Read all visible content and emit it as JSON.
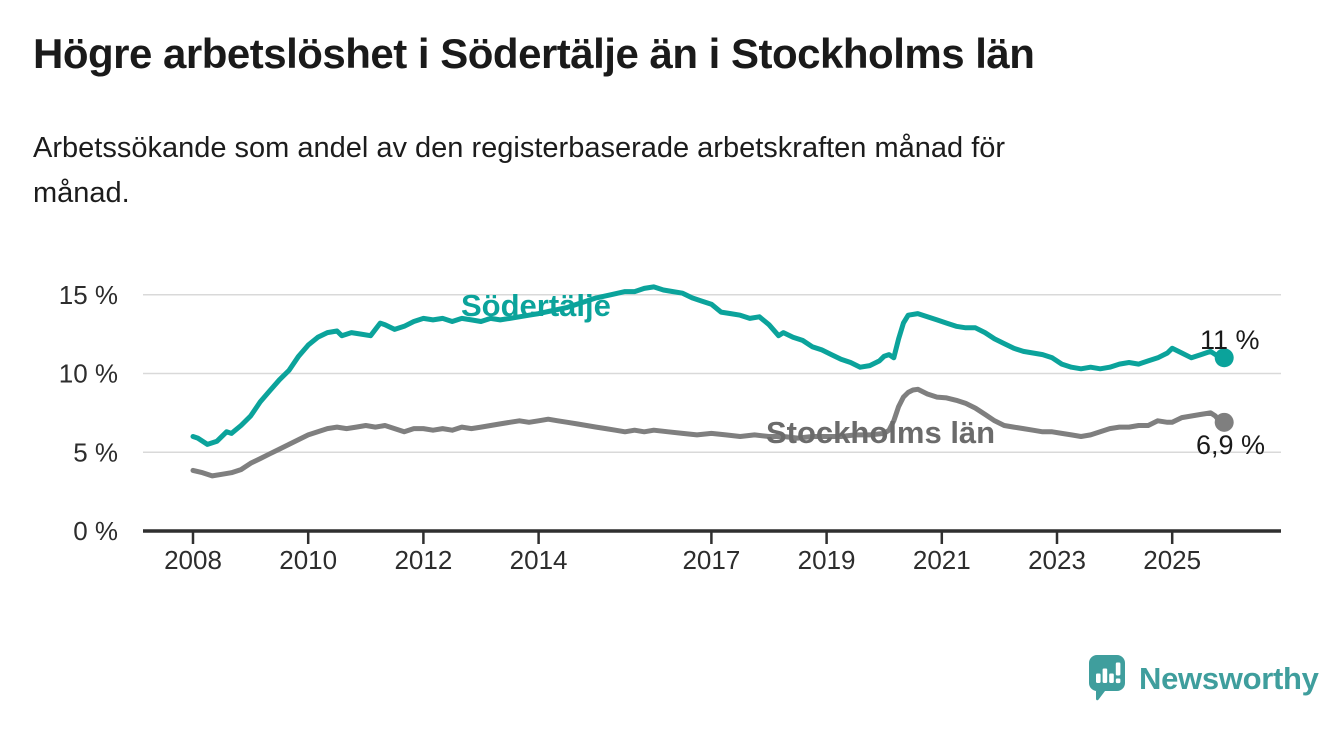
{
  "title": "Högre arbetslöshet i Södertälje än i Stockholms län",
  "subtitle": "Arbetssökande som andel av den registerbaserade arbetskraften månad för månad.",
  "branding": {
    "name": "Newsworthy"
  },
  "colors": {
    "background": "#ffffff",
    "title_text": "#1a1a1a",
    "axis_text": "#2d2d2d",
    "gridline": "#d9d9d9",
    "axis_line": "#2f2f2f",
    "sodertalje_teal": "#0ba39b",
    "stockholm_gray": "#7f7f7f",
    "stockholm_label_gray": "#6b6b6b",
    "logo_teal": "#3f9e9d"
  },
  "chart_data": {
    "type": "line",
    "unit": "%",
    "grid": "horizontal",
    "legend_position": "inline-labels",
    "ylim": [
      0,
      16.5
    ],
    "x_range": [
      "2008-01",
      "2025-11"
    ],
    "y_axis": {
      "ticks": [
        {
          "value": 0,
          "label": "0 %"
        },
        {
          "value": 5,
          "label": "5 %"
        },
        {
          "value": 10,
          "label": "10 %"
        },
        {
          "value": 15,
          "label": "15 %"
        }
      ]
    },
    "x_axis": {
      "ticks": [
        {
          "value": 2008,
          "label": "2008"
        },
        {
          "value": 2010,
          "label": "2010"
        },
        {
          "value": 2012,
          "label": "2012"
        },
        {
          "value": 2014,
          "label": "2014"
        },
        {
          "value": 2017,
          "label": "2017"
        },
        {
          "value": 2019,
          "label": "2019"
        },
        {
          "value": 2021,
          "label": "2021"
        },
        {
          "value": 2023,
          "label": "2023"
        },
        {
          "value": 2025,
          "label": "2025"
        }
      ]
    },
    "series": [
      {
        "name": "Södertälje",
        "color": "#0ba39b",
        "label_color": "#0ba39b",
        "end_label": "11 %",
        "end_value": 11.0,
        "points": [
          [
            "2008-01",
            6.0
          ],
          [
            "2008-02",
            5.9
          ],
          [
            "2008-04",
            5.5
          ],
          [
            "2008-06",
            5.7
          ],
          [
            "2008-08",
            6.3
          ],
          [
            "2008-09",
            6.2
          ],
          [
            "2008-11",
            6.7
          ],
          [
            "2009-01",
            7.3
          ],
          [
            "2009-03",
            8.2
          ],
          [
            "2009-05",
            8.9
          ],
          [
            "2009-07",
            9.6
          ],
          [
            "2009-09",
            10.2
          ],
          [
            "2009-11",
            11.1
          ],
          [
            "2010-01",
            11.8
          ],
          [
            "2010-03",
            12.3
          ],
          [
            "2010-05",
            12.6
          ],
          [
            "2010-07",
            12.7
          ],
          [
            "2010-08",
            12.4
          ],
          [
            "2010-10",
            12.6
          ],
          [
            "2010-12",
            12.5
          ],
          [
            "2011-02",
            12.4
          ],
          [
            "2011-04",
            13.2
          ],
          [
            "2011-05",
            13.1
          ],
          [
            "2011-07",
            12.8
          ],
          [
            "2011-09",
            13.0
          ],
          [
            "2011-11",
            13.3
          ],
          [
            "2012-01",
            13.5
          ],
          [
            "2012-03",
            13.4
          ],
          [
            "2012-05",
            13.5
          ],
          [
            "2012-07",
            13.3
          ],
          [
            "2012-09",
            13.5
          ],
          [
            "2012-11",
            13.4
          ],
          [
            "2013-01",
            13.3
          ],
          [
            "2013-03",
            13.5
          ],
          [
            "2013-05",
            13.4
          ],
          [
            "2013-07",
            13.5
          ],
          [
            "2013-09",
            13.6
          ],
          [
            "2013-11",
            13.7
          ],
          [
            "2014-01",
            13.8
          ],
          [
            "2014-04",
            14.0
          ],
          [
            "2014-07",
            14.2
          ],
          [
            "2014-10",
            14.5
          ],
          [
            "2015-01",
            14.8
          ],
          [
            "2015-04",
            15.0
          ],
          [
            "2015-07",
            15.2
          ],
          [
            "2015-09",
            15.2
          ],
          [
            "2015-11",
            15.4
          ],
          [
            "2016-01",
            15.5
          ],
          [
            "2016-03",
            15.3
          ],
          [
            "2016-05",
            15.2
          ],
          [
            "2016-07",
            15.1
          ],
          [
            "2016-09",
            14.8
          ],
          [
            "2016-11",
            14.6
          ],
          [
            "2017-01",
            14.4
          ],
          [
            "2017-03",
            13.9
          ],
          [
            "2017-05",
            13.8
          ],
          [
            "2017-07",
            13.7
          ],
          [
            "2017-09",
            13.5
          ],
          [
            "2017-11",
            13.6
          ],
          [
            "2018-01",
            13.1
          ],
          [
            "2018-03",
            12.4
          ],
          [
            "2018-04",
            12.6
          ],
          [
            "2018-06",
            12.3
          ],
          [
            "2018-08",
            12.1
          ],
          [
            "2018-10",
            11.7
          ],
          [
            "2018-12",
            11.5
          ],
          [
            "2019-02",
            11.2
          ],
          [
            "2019-04",
            10.9
          ],
          [
            "2019-06",
            10.7
          ],
          [
            "2019-08",
            10.4
          ],
          [
            "2019-10",
            10.5
          ],
          [
            "2019-12",
            10.8
          ],
          [
            "2020-01",
            11.1
          ],
          [
            "2020-02",
            11.2
          ],
          [
            "2020-03",
            11.0
          ],
          [
            "2020-04",
            12.2
          ],
          [
            "2020-05",
            13.2
          ],
          [
            "2020-06",
            13.7
          ],
          [
            "2020-08",
            13.8
          ],
          [
            "2020-10",
            13.6
          ],
          [
            "2020-12",
            13.4
          ],
          [
            "2021-02",
            13.2
          ],
          [
            "2021-04",
            13.0
          ],
          [
            "2021-06",
            12.9
          ],
          [
            "2021-08",
            12.9
          ],
          [
            "2021-10",
            12.6
          ],
          [
            "2021-12",
            12.2
          ],
          [
            "2022-02",
            11.9
          ],
          [
            "2022-04",
            11.6
          ],
          [
            "2022-06",
            11.4
          ],
          [
            "2022-08",
            11.3
          ],
          [
            "2022-10",
            11.2
          ],
          [
            "2022-12",
            11.0
          ],
          [
            "2023-02",
            10.6
          ],
          [
            "2023-04",
            10.4
          ],
          [
            "2023-06",
            10.3
          ],
          [
            "2023-08",
            10.4
          ],
          [
            "2023-10",
            10.3
          ],
          [
            "2023-12",
            10.4
          ],
          [
            "2024-02",
            10.6
          ],
          [
            "2024-04",
            10.7
          ],
          [
            "2024-06",
            10.6
          ],
          [
            "2024-08",
            10.8
          ],
          [
            "2024-10",
            11.0
          ],
          [
            "2024-12",
            11.3
          ],
          [
            "2025-01",
            11.6
          ],
          [
            "2025-03",
            11.3
          ],
          [
            "2025-05",
            11.0
          ],
          [
            "2025-07",
            11.2
          ],
          [
            "2025-09",
            11.4
          ],
          [
            "2025-10",
            11.2
          ],
          [
            "2025-11",
            11.0
          ]
        ]
      },
      {
        "name": "Stockholms län",
        "color": "#7f7f7f",
        "label_color": "#6b6b6b",
        "end_label": "6,9 %",
        "end_value": 6.9,
        "points": [
          [
            "2008-01",
            3.85
          ],
          [
            "2008-03",
            3.7
          ],
          [
            "2008-05",
            3.5
          ],
          [
            "2008-07",
            3.6
          ],
          [
            "2008-09",
            3.7
          ],
          [
            "2008-11",
            3.9
          ],
          [
            "2009-01",
            4.3
          ],
          [
            "2009-03",
            4.6
          ],
          [
            "2009-05",
            4.9
          ],
          [
            "2009-07",
            5.2
          ],
          [
            "2009-09",
            5.5
          ],
          [
            "2009-11",
            5.8
          ],
          [
            "2010-01",
            6.1
          ],
          [
            "2010-03",
            6.3
          ],
          [
            "2010-05",
            6.5
          ],
          [
            "2010-07",
            6.6
          ],
          [
            "2010-09",
            6.5
          ],
          [
            "2010-11",
            6.6
          ],
          [
            "2011-01",
            6.7
          ],
          [
            "2011-03",
            6.6
          ],
          [
            "2011-05",
            6.7
          ],
          [
            "2011-07",
            6.5
          ],
          [
            "2011-09",
            6.3
          ],
          [
            "2011-11",
            6.5
          ],
          [
            "2012-01",
            6.5
          ],
          [
            "2012-03",
            6.4
          ],
          [
            "2012-05",
            6.5
          ],
          [
            "2012-07",
            6.4
          ],
          [
            "2012-09",
            6.6
          ],
          [
            "2012-11",
            6.5
          ],
          [
            "2013-01",
            6.6
          ],
          [
            "2013-03",
            6.7
          ],
          [
            "2013-05",
            6.8
          ],
          [
            "2013-07",
            6.9
          ],
          [
            "2013-09",
            7.0
          ],
          [
            "2013-11",
            6.9
          ],
          [
            "2014-01",
            7.0
          ],
          [
            "2014-03",
            7.1
          ],
          [
            "2014-05",
            7.0
          ],
          [
            "2014-07",
            6.9
          ],
          [
            "2014-09",
            6.8
          ],
          [
            "2014-11",
            6.7
          ],
          [
            "2015-01",
            6.6
          ],
          [
            "2015-03",
            6.5
          ],
          [
            "2015-05",
            6.4
          ],
          [
            "2015-07",
            6.3
          ],
          [
            "2015-09",
            6.4
          ],
          [
            "2015-11",
            6.3
          ],
          [
            "2016-01",
            6.4
          ],
          [
            "2016-04",
            6.3
          ],
          [
            "2016-07",
            6.2
          ],
          [
            "2016-10",
            6.1
          ],
          [
            "2017-01",
            6.2
          ],
          [
            "2017-04",
            6.1
          ],
          [
            "2017-07",
            6.0
          ],
          [
            "2017-10",
            6.1
          ],
          [
            "2018-01",
            6.0
          ],
          [
            "2018-04",
            6.0
          ],
          [
            "2018-07",
            5.9
          ],
          [
            "2018-10",
            6.0
          ],
          [
            "2019-01",
            6.0
          ],
          [
            "2019-04",
            6.0
          ],
          [
            "2019-07",
            6.1
          ],
          [
            "2019-10",
            6.1
          ],
          [
            "2020-01",
            6.2
          ],
          [
            "2020-02",
            6.4
          ],
          [
            "2020-03",
            7.0
          ],
          [
            "2020-04",
            7.9
          ],
          [
            "2020-05",
            8.5
          ],
          [
            "2020-06",
            8.8
          ],
          [
            "2020-07",
            8.95
          ],
          [
            "2020-08",
            9.0
          ],
          [
            "2020-10",
            8.7
          ],
          [
            "2020-12",
            8.5
          ],
          [
            "2021-02",
            8.45
          ],
          [
            "2021-04",
            8.3
          ],
          [
            "2021-06",
            8.1
          ],
          [
            "2021-08",
            7.8
          ],
          [
            "2021-10",
            7.4
          ],
          [
            "2021-12",
            7.0
          ],
          [
            "2022-02",
            6.7
          ],
          [
            "2022-04",
            6.6
          ],
          [
            "2022-06",
            6.5
          ],
          [
            "2022-08",
            6.4
          ],
          [
            "2022-10",
            6.3
          ],
          [
            "2022-12",
            6.3
          ],
          [
            "2023-02",
            6.2
          ],
          [
            "2023-04",
            6.1
          ],
          [
            "2023-06",
            6.0
          ],
          [
            "2023-08",
            6.1
          ],
          [
            "2023-10",
            6.3
          ],
          [
            "2023-12",
            6.5
          ],
          [
            "2024-02",
            6.6
          ],
          [
            "2024-04",
            6.6
          ],
          [
            "2024-06",
            6.7
          ],
          [
            "2024-08",
            6.7
          ],
          [
            "2024-10",
            7.0
          ],
          [
            "2024-12",
            6.9
          ],
          [
            "2025-01",
            6.9
          ],
          [
            "2025-03",
            7.2
          ],
          [
            "2025-05",
            7.3
          ],
          [
            "2025-07",
            7.4
          ],
          [
            "2025-09",
            7.5
          ],
          [
            "2025-10",
            7.3
          ],
          [
            "2025-11",
            6.9
          ]
        ]
      }
    ]
  }
}
